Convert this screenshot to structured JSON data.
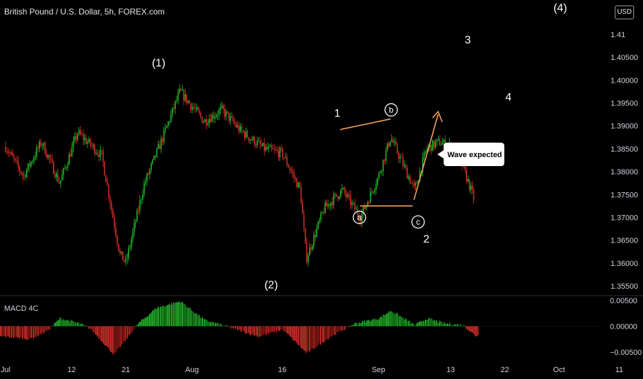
{
  "header": {
    "title": "British Pound / U.S. Dollar, 5h, FOREX.com",
    "currency": "USD"
  },
  "colors": {
    "background": "#000000",
    "up": "#22c52a",
    "down": "#e0312b",
    "wave_line": "#f5a15a",
    "text": "#ffffff",
    "axis_text": "#d1d4dc"
  },
  "chart_data": [
    {
      "type": "candlestick",
      "y_axis": {
        "ticks": [
          "1.35500",
          "1.36000",
          "1.36500",
          "1.37000",
          "1.37500",
          "1.38000",
          "1.38500",
          "1.39000",
          "1.39500",
          "1.40000",
          "1.40500",
          "1.41"
        ],
        "range": [
          1.3535,
          1.4145
        ]
      },
      "x_axis": {
        "ticks": [
          "Jul",
          "12",
          "21",
          "Aug",
          "16",
          "Sep",
          "13",
          "22",
          "Oct",
          "11"
        ]
      },
      "price_path": [
        {
          "t": "Jul 1",
          "p": 1.3855
        },
        {
          "t": "Jul 4",
          "p": 1.379
        },
        {
          "t": "Jul 7",
          "p": 1.3865
        },
        {
          "t": "Jul 10",
          "p": 1.3775
        },
        {
          "t": "Jul 13",
          "p": 1.3885
        },
        {
          "t": "Jul 15",
          "p": 1.386
        },
        {
          "t": "Jul 17",
          "p": 1.3835
        },
        {
          "t": "Jul 20",
          "p": 1.362
        },
        {
          "t": "Jul 21",
          "p": 1.36
        },
        {
          "t": "Jul 24",
          "p": 1.377
        },
        {
          "t": "Jul 27",
          "p": 1.387
        },
        {
          "t": "Jul 30",
          "p": 1.3975
        },
        {
          "t": "Aug 3",
          "p": 1.391
        },
        {
          "t": "Aug 6",
          "p": 1.3935
        },
        {
          "t": "Aug 9",
          "p": 1.389
        },
        {
          "t": "Aug 13",
          "p": 1.385
        },
        {
          "t": "Aug 16",
          "p": 1.384
        },
        {
          "t": "Aug 19",
          "p": 1.376
        },
        {
          "t": "Aug 20",
          "p": 1.361
        },
        {
          "t": "Aug 23",
          "p": 1.372
        },
        {
          "t": "Aug 26",
          "p": 1.376
        },
        {
          "t": "Aug 29",
          "p": 1.37
        },
        {
          "t": "Sep 1",
          "p": 1.379
        },
        {
          "t": "Sep 3",
          "p": 1.3875
        },
        {
          "t": "Sep 7",
          "p": 1.376
        },
        {
          "t": "Sep 9",
          "p": 1.385
        },
        {
          "t": "Sep 11",
          "p": 1.3865
        },
        {
          "t": "Sep 14",
          "p": 1.385
        },
        {
          "t": "Sep 17",
          "p": 1.3735
        }
      ],
      "macd_4c": {
        "label": "MACD 4C",
        "y_ticks": [
          "0.00500",
          "0.00000",
          "−0.00500"
        ],
        "range": [
          -0.0062,
          0.0055
        ],
        "path": [
          {
            "t": "Jul 1",
            "v": -0.002
          },
          {
            "t": "Jul 5",
            "v": -0.0025
          },
          {
            "t": "Jul 8",
            "v": -0.0008
          },
          {
            "t": "Jul 10",
            "v": 0.0015
          },
          {
            "t": "Jul 13",
            "v": 0.0006
          },
          {
            "t": "Jul 15",
            "v": -0.0004
          },
          {
            "t": "Jul 19",
            "v": -0.0055
          },
          {
            "t": "Jul 20",
            "v": -0.004
          },
          {
            "t": "Jul 23",
            "v": 0.0005
          },
          {
            "t": "Jul 26",
            "v": 0.0035
          },
          {
            "t": "Jul 30",
            "v": 0.0048
          },
          {
            "t": "Aug 3",
            "v": 0.0012
          },
          {
            "t": "Aug 8",
            "v": -0.0005
          },
          {
            "t": "Aug 12",
            "v": -0.002
          },
          {
            "t": "Aug 16",
            "v": -0.0006
          },
          {
            "t": "Aug 20",
            "v": -0.0052
          },
          {
            "t": "Aug 24",
            "v": -0.002
          },
          {
            "t": "Aug 28",
            "v": 0.0005
          },
          {
            "t": "Sep 1",
            "v": 0.0015
          },
          {
            "t": "Sep 3",
            "v": 0.003
          },
          {
            "t": "Sep 7",
            "v": 0.0002
          },
          {
            "t": "Sep 9",
            "v": 0.0015
          },
          {
            "t": "Sep 12",
            "v": 0.0005
          },
          {
            "t": "Sep 15",
            "v": 0.0002
          },
          {
            "t": "Sep 17",
            "v": -0.0018
          }
        ]
      }
    }
  ],
  "wave_labels": {
    "w1": "(1)",
    "w2": "(2)",
    "s1": "1",
    "s2": "2",
    "s3": "3",
    "s4": "4",
    "w4": "(4)",
    "a": "a",
    "b": "b",
    "c": "c"
  },
  "wave_anchor_prices": {
    "w1": 1.403,
    "w2": 1.3545,
    "s1": 1.392,
    "s2": 1.3645,
    "s3": 1.408,
    "s4": 1.3955,
    "w4": 1.415,
    "a": 1.37,
    "b": 1.3935,
    "c": 1.369
  },
  "wave_lines": {
    "b_top": [
      1.3892,
      1.3915
    ],
    "c_bottom": [
      1.3725,
      1.3725
    ]
  },
  "callout": {
    "text": "Wave expected"
  }
}
